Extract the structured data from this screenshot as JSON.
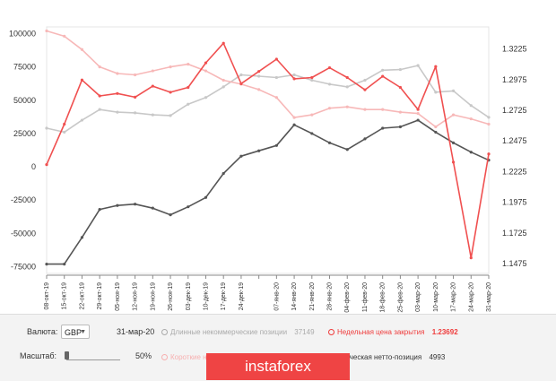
{
  "chart_data": {
    "type": "line",
    "x": [
      "08-окт-19",
      "15-окт-19",
      "22-окт-19",
      "29-окт-19",
      "05-ноя-19",
      "12-ноя-19",
      "19-ноя-19",
      "26-ноя-19",
      "03-дек-19",
      "10-дек-19",
      "17-дек-19",
      "24-дек-19",
      "31-дек-19",
      "07-янв-20",
      "14-янв-20",
      "21-янв-20",
      "28-янв-20",
      "04-фев-20",
      "11-фев-20",
      "18-фев-20",
      "25-фев-20",
      "03-мар-20",
      "10-мар-20",
      "17-мар-20",
      "24-мар-20",
      "31-мар-20"
    ],
    "xticks": [
      "08-окт-19",
      "15-окт-19",
      "22-окт-19",
      "29-окт-19",
      "05-ноя-19",
      "12-ноя-19",
      "19-ноя-19",
      "26-ноя-19",
      "03-дек-19",
      "10-дек-19",
      "17-дек-19",
      "24-дек-19",
      "",
      "07-янв-20",
      "14-янв-20",
      "21-янв-20",
      "28-янв-20",
      "04-фев-20",
      "11-фев-20",
      "18-фев-20",
      "25-фев-20",
      "03-мар-20",
      "10-мар-20",
      "17-мар-20",
      "24-мар-20",
      "31-мар-20"
    ],
    "yticks_left": [
      "100000",
      "75000",
      "50000",
      "25000",
      "0",
      "-25000",
      "-50000",
      "-75000"
    ],
    "yticks_right": [
      "1.3225",
      "1.2975",
      "1.2725",
      "1.2475",
      "1.2225",
      "1.1975",
      "1.1725",
      "1.1475"
    ],
    "ylim_left": [
      -80000,
      105000
    ],
    "ylim_right": [
      1.1395,
      1.3405
    ],
    "series": [
      {
        "key": "long",
        "axis": "left",
        "color": "#c8c8c8",
        "values": [
          29000,
          26000,
          35000,
          43000,
          41000,
          40500,
          39000,
          38500,
          47000,
          52000,
          60000,
          69000,
          68000,
          67000,
          69000,
          65000,
          62000,
          60000,
          65000,
          72500,
          73000,
          76000,
          56000,
          57000,
          46000,
          37149
        ]
      },
      {
        "key": "short",
        "axis": "left",
        "color": "#f7b8b8",
        "values": [
          102000,
          98000,
          88000,
          75000,
          70000,
          69000,
          72000,
          75000,
          77000,
          72000,
          65000,
          62000,
          58000,
          52000,
          37000,
          39000,
          44000,
          45000,
          43000,
          43000,
          41000,
          40000,
          30000,
          39000,
          36000,
          32000
        ]
      },
      {
        "key": "net",
        "axis": "left",
        "color": "#555555",
        "values": [
          -73000,
          -73000,
          -53000,
          -32000,
          -29000,
          -28000,
          -31000,
          -36000,
          -30000,
          -23000,
          -5000,
          8000,
          12000,
          16000,
          31500,
          25000,
          18000,
          13000,
          21000,
          29000,
          30000,
          35000,
          26000,
          18000,
          11000,
          4993
        ]
      },
      {
        "key": "close",
        "axis": "right",
        "color": "#f05050",
        "values": [
          1.2282,
          1.2612,
          1.2972,
          1.2842,
          1.2862,
          1.2832,
          1.2922,
          1.2872,
          1.2912,
          1.3112,
          1.3272,
          1.2942,
          1.3042,
          1.3142,
          1.2982,
          1.2992,
          1.3072,
          1.2992,
          1.2892,
          1.3002,
          1.2912,
          1.2732,
          1.3082,
          1.2302,
          1.1522,
          1.23692
        ]
      }
    ]
  },
  "controls": {
    "currency_label": "Валюта:",
    "currency_value": "GBP",
    "date": "31-мар-20",
    "long_label": "Длинные некоммерческие позиции",
    "long_value": "37149",
    "close_label": "Недельная цена закрытия",
    "close_value": "1.23692",
    "scale_label": "Масштаб:",
    "scale_value": "50%",
    "short_label": "Короткие н",
    "net_label": "коммерческая нетто-позиция",
    "net_value": "4993"
  },
  "watermark": "instaforex"
}
